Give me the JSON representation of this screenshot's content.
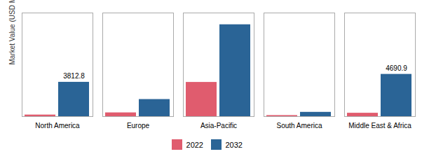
{
  "chart_data": {
    "type": "bar",
    "categories": [
      "North America",
      "Europe",
      "Asia-Pacific",
      "South America",
      "Middle East & Africa"
    ],
    "series": [
      {
        "name": "2022",
        "color": "#e05c6e",
        "values": [
          180,
          420,
          3800,
          120,
          380
        ]
      },
      {
        "name": "2032",
        "color": "#2a6496",
        "values": [
          3812.8,
          1900,
          10200,
          480,
          4690.9
        ]
      }
    ],
    "ylabel": "Market Value (USD Million)",
    "ylim": [
      0,
      11500
    ],
    "yticks": [],
    "tick_labels": "x",
    "grid": false,
    "legend": "lower center",
    "annotations": [
      {
        "text": "3812.8",
        "category": "North America",
        "series": "2032"
      },
      {
        "text": "4690.9",
        "category": "Middle East & Africa",
        "series": "2032"
      }
    ]
  }
}
